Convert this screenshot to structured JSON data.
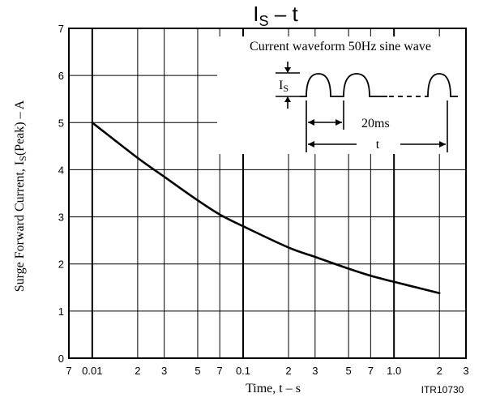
{
  "chart_data": {
    "type": "line",
    "title_main": "I",
    "title_sub": "S",
    "title_rest": " – t",
    "xlabel": "Time, t – s",
    "ylabel_main": "Surge Forward Current, I",
    "ylabel_sub": "S",
    "ylabel_rest": "(Peak) – A",
    "x_scale": "log",
    "xlim": [
      0.007,
      3
    ],
    "ylim": [
      0,
      7
    ],
    "grid": true,
    "x_tick_labels": [
      {
        "value": 0.007,
        "label": "7"
      },
      {
        "value": 0.01,
        "label": "0.01"
      },
      {
        "value": 0.02,
        "label": "2"
      },
      {
        "value": 0.03,
        "label": "3"
      },
      {
        "value": 0.05,
        "label": "5"
      },
      {
        "value": 0.07,
        "label": "7"
      },
      {
        "value": 0.1,
        "label": "0.1"
      },
      {
        "value": 0.2,
        "label": "2"
      },
      {
        "value": 0.3,
        "label": "3"
      },
      {
        "value": 0.5,
        "label": "5"
      },
      {
        "value": 0.7,
        "label": "7"
      },
      {
        "value": 1.0,
        "label": "1.0"
      },
      {
        "value": 2,
        "label": "2"
      },
      {
        "value": 3,
        "label": "3"
      }
    ],
    "y_tick_labels": [
      {
        "value": 0,
        "label": "0"
      },
      {
        "value": 1,
        "label": "1"
      },
      {
        "value": 2,
        "label": "2"
      },
      {
        "value": 3,
        "label": "3"
      },
      {
        "value": 4,
        "label": "4"
      },
      {
        "value": 5,
        "label": "5"
      },
      {
        "value": 6,
        "label": "6"
      },
      {
        "value": 7,
        "label": "7"
      }
    ],
    "series": [
      {
        "x": [
          0.01,
          0.02,
          0.03,
          0.05,
          0.07,
          0.1,
          0.2,
          0.3,
          0.5,
          0.7,
          1.0,
          2.0
        ],
        "y": [
          5.0,
          4.25,
          3.85,
          3.35,
          3.05,
          2.8,
          2.35,
          2.15,
          1.9,
          1.75,
          1.62,
          1.38
        ]
      }
    ],
    "inset": {
      "caption": "Current waveform 50Hz sine wave",
      "is_label_main": "I",
      "is_label_sub": "S",
      "period_label": "20ms",
      "duration_label": "t"
    },
    "figure_code": "ITR10730"
  }
}
